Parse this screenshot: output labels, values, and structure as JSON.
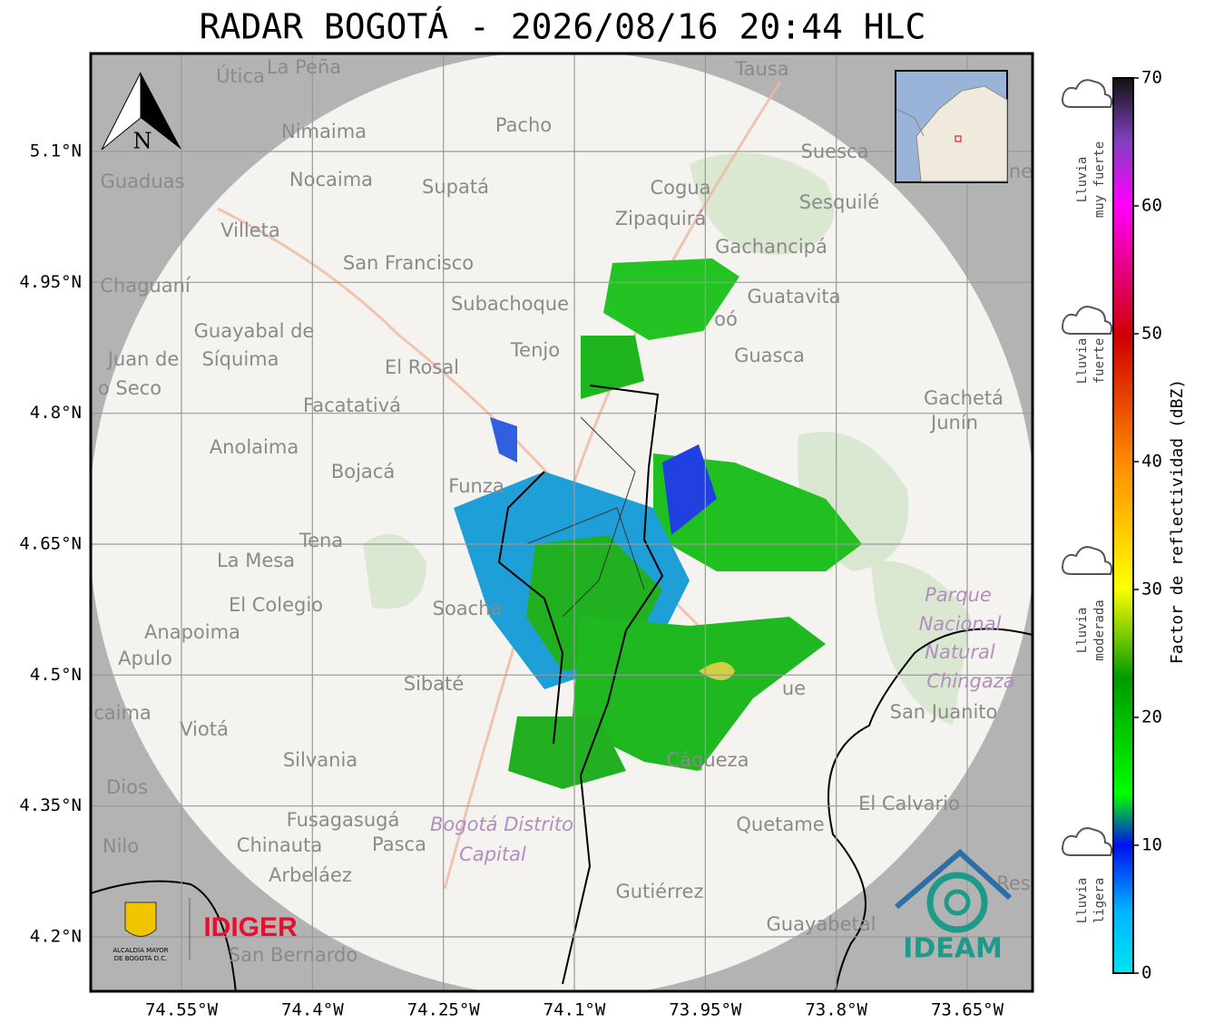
{
  "title": "RADAR BOGOTÁ - 2026/08/16 20:44 HLC",
  "map": {
    "north": "N",
    "lat_ticks": [
      {
        "value": 5.1,
        "label": "5.1°N"
      },
      {
        "value": 4.95,
        "label": "4.95°N"
      },
      {
        "value": 4.8,
        "label": "4.8°N"
      },
      {
        "value": 4.65,
        "label": "4.65°N"
      },
      {
        "value": 4.5,
        "label": "4.5°N"
      },
      {
        "value": 4.35,
        "label": "4.35°N"
      },
      {
        "value": 4.2,
        "label": "4.2°N"
      }
    ],
    "lon_ticks": [
      {
        "value": -74.55,
        "label": "74.55°W"
      },
      {
        "value": -74.4,
        "label": "74.4°W"
      },
      {
        "value": -74.25,
        "label": "74.25°W"
      },
      {
        "value": -74.1,
        "label": "74.1°W"
      },
      {
        "value": -73.95,
        "label": "73.95°W"
      },
      {
        "value": -73.8,
        "label": "73.8°W"
      },
      {
        "value": -73.65,
        "label": "73.65°W"
      }
    ],
    "places": [
      "Útica",
      "La Peña",
      "Tausa",
      "Nimaima",
      "Pacho",
      "Suesca",
      "Guaduas",
      "Nocaima",
      "Supatá",
      "Cogua",
      "Sesquilé",
      "Zipaquirá",
      "Villeta",
      "Gachancipá",
      "San Francisco",
      "Chaguaní",
      "Guatavita",
      "Subachoque",
      "Guayabal de",
      "Síquima",
      "Tenjo",
      "Guasca",
      "Juan de",
      "El Rosal",
      "o Seco",
      "Facatativá",
      "Gachetá",
      "Junín",
      "Anolaima",
      "Bojacá",
      "Funza",
      "Tena",
      "La Mesa",
      "Parque",
      "Soacha",
      "El Colegio",
      "Nacional",
      "Anapoima",
      "Natural",
      "Apulo",
      "Chingaza",
      "Sibaté",
      "San Juanito",
      "caima",
      "Viotá",
      "Silvania",
      "Cáqueza",
      "Dios",
      "El Calvario",
      "Fusagasugá",
      "Bogotá Distrito",
      "Quetame",
      "Nilo",
      "Chinauta",
      "Pasca",
      "Capital",
      "Arbeláez",
      "Gutiérrez",
      "Guayabetal",
      "San Bernardo",
      "Res",
      "ne",
      "ue",
      "oó"
    ]
  },
  "logos": {
    "alcaldia_1": "ALCALDÍA MAYOR",
    "alcaldia_2": "DE BOGOTÁ D.C.",
    "idiger": "IDIGER",
    "ideam": "IDEAM"
  },
  "colorbar": {
    "label": "Factor de reflectividad (dBZ)",
    "range": [
      0,
      70
    ],
    "ticks": [
      0,
      10,
      20,
      30,
      40,
      50,
      60,
      70
    ]
  },
  "rain_levels": [
    {
      "line1": "Lluvia",
      "line2": "muy fuerte"
    },
    {
      "line1": "Lluvia",
      "line2": "fuerte"
    },
    {
      "line1": "Lluvia",
      "line2": "moderada"
    },
    {
      "line1": "Lluvia",
      "line2": "ligera"
    }
  ]
}
